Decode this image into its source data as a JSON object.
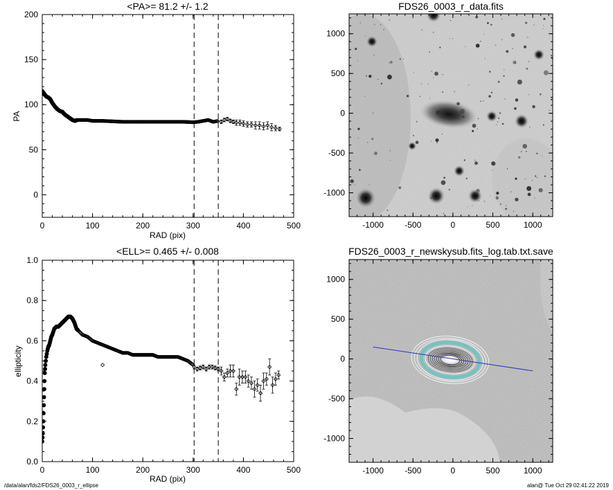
{
  "chart_data": [
    {
      "type": "scatter",
      "title": "<PA>=  81.2 +/-   1.2",
      "xlabel": "RAD (pix)",
      "ylabel": "PA",
      "xlim": [
        0,
        500
      ],
      "ylim": [
        -25,
        200
      ],
      "xticks": [
        0,
        100,
        200,
        300,
        400,
        500
      ],
      "yticks": [
        0,
        50,
        100,
        150,
        200
      ],
      "vlines": [
        302,
        350
      ],
      "curve": [
        [
          0,
          115
        ],
        [
          4,
          112
        ],
        [
          8,
          109
        ],
        [
          12,
          108
        ],
        [
          16,
          106
        ],
        [
          20,
          102
        ],
        [
          25,
          98
        ],
        [
          30,
          95
        ],
        [
          35,
          93
        ],
        [
          40,
          92
        ],
        [
          45,
          89
        ],
        [
          50,
          87
        ],
        [
          55,
          85
        ],
        [
          60,
          83
        ],
        [
          65,
          82
        ],
        [
          70,
          83
        ],
        [
          80,
          83
        ],
        [
          90,
          83
        ],
        [
          100,
          82
        ],
        [
          120,
          82
        ],
        [
          140,
          81.5
        ],
        [
          160,
          81
        ],
        [
          180,
          81
        ],
        [
          200,
          81
        ],
        [
          220,
          81
        ],
        [
          240,
          81
        ],
        [
          260,
          81
        ],
        [
          280,
          81
        ],
        [
          300,
          80.5
        ],
        [
          310,
          81
        ],
        [
          320,
          82
        ],
        [
          330,
          83
        ],
        [
          340,
          81
        ],
        [
          350,
          82
        ]
      ],
      "points": [
        [
          356,
          81
        ],
        [
          362,
          83
        ],
        [
          368,
          84
        ],
        [
          374,
          82
        ],
        [
          380,
          81
        ],
        [
          386,
          80
        ],
        [
          393,
          80
        ],
        [
          400,
          79
        ],
        [
          408,
          78
        ],
        [
          416,
          78
        ],
        [
          424,
          77
        ],
        [
          432,
          77
        ],
        [
          440,
          76
        ],
        [
          448,
          77
        ],
        [
          456,
          75
        ],
        [
          464,
          74
        ],
        [
          472,
          73
        ]
      ],
      "errors": [
        2,
        2,
        2,
        2,
        2,
        3,
        3,
        3,
        3,
        3,
        4,
        4,
        4,
        4,
        4,
        3,
        2
      ]
    },
    {
      "type": "scatter",
      "title": "<ELL>= 0.465 +/-  0.008",
      "xlabel": "RAD (pix)",
      "ylabel": "ellipticity",
      "xlim": [
        0,
        500
      ],
      "ylim": [
        0,
        1
      ],
      "xticks": [
        0,
        100,
        200,
        300,
        400,
        500
      ],
      "yticks": [
        "0.0",
        "0.2",
        "0.4",
        "0.6",
        "0.8",
        "1.0"
      ],
      "vlines": [
        302,
        350
      ],
      "curve": [
        [
          0,
          0.1
        ],
        [
          1,
          0.14
        ],
        [
          2,
          0.2
        ],
        [
          3,
          0.28
        ],
        [
          4,
          0.36
        ],
        [
          5,
          0.44
        ],
        [
          6,
          0.48
        ],
        [
          8,
          0.52
        ],
        [
          10,
          0.55
        ],
        [
          12,
          0.57
        ],
        [
          14,
          0.58
        ],
        [
          16,
          0.6
        ],
        [
          18,
          0.62
        ],
        [
          20,
          0.63
        ],
        [
          24,
          0.66
        ],
        [
          28,
          0.67
        ],
        [
          32,
          0.67
        ],
        [
          36,
          0.68
        ],
        [
          40,
          0.69
        ],
        [
          44,
          0.7
        ],
        [
          48,
          0.71
        ],
        [
          52,
          0.72
        ],
        [
          56,
          0.72
        ],
        [
          60,
          0.71
        ],
        [
          64,
          0.69
        ],
        [
          68,
          0.66
        ],
        [
          72,
          0.65
        ],
        [
          76,
          0.64
        ],
        [
          80,
          0.63
        ],
        [
          90,
          0.62
        ],
        [
          100,
          0.6
        ],
        [
          110,
          0.59
        ],
        [
          120,
          0.58
        ],
        [
          130,
          0.57
        ],
        [
          140,
          0.56
        ],
        [
          150,
          0.55
        ],
        [
          160,
          0.54
        ],
        [
          170,
          0.54
        ],
        [
          180,
          0.53
        ],
        [
          190,
          0.53
        ],
        [
          200,
          0.53
        ],
        [
          210,
          0.53
        ],
        [
          220,
          0.53
        ],
        [
          230,
          0.52
        ],
        [
          240,
          0.52
        ],
        [
          250,
          0.52
        ],
        [
          260,
          0.52
        ],
        [
          270,
          0.52
        ],
        [
          280,
          0.51
        ],
        [
          290,
          0.5
        ],
        [
          300,
          0.48
        ]
      ],
      "points": [
        [
          120,
          0.48
        ],
        [
          302,
          0.47
        ],
        [
          308,
          0.46
        ],
        [
          314,
          0.465
        ],
        [
          320,
          0.47
        ],
        [
          326,
          0.46
        ],
        [
          332,
          0.47
        ],
        [
          338,
          0.47
        ],
        [
          344,
          0.465
        ],
        [
          350,
          0.46
        ],
        [
          356,
          0.45
        ],
        [
          362,
          0.42
        ],
        [
          368,
          0.44
        ],
        [
          374,
          0.45
        ],
        [
          380,
          0.45
        ],
        [
          386,
          0.36
        ],
        [
          392,
          0.42
        ],
        [
          398,
          0.42
        ],
        [
          404,
          0.42
        ],
        [
          410,
          0.4
        ],
        [
          416,
          0.39
        ],
        [
          422,
          0.36
        ],
        [
          428,
          0.38
        ],
        [
          434,
          0.34
        ],
        [
          440,
          0.4
        ],
        [
          446,
          0.41
        ],
        [
          452,
          0.47
        ],
        [
          458,
          0.38
        ],
        [
          464,
          0.41
        ],
        [
          470,
          0.43
        ]
      ],
      "errors": [
        0,
        0.01,
        0.01,
        0.01,
        0.01,
        0.01,
        0.01,
        0.01,
        0.01,
        0.01,
        0.02,
        0.02,
        0.02,
        0.03,
        0.03,
        0.03,
        0.04,
        0.03,
        0.03,
        0.03,
        0.03,
        0.04,
        0.03,
        0.04,
        0.04,
        0.03,
        0.04,
        0.04,
        0.03,
        0.02
      ]
    },
    {
      "type": "heatmap",
      "title": "FDS26_0003_r_data.fits",
      "xlim": [
        -1300,
        1250
      ],
      "ylim": [
        -1300,
        1250
      ],
      "xticks": [
        -1000,
        -500,
        0,
        500,
        1000
      ],
      "yticks": [
        -1000,
        -500,
        0,
        500,
        1000
      ]
    },
    {
      "type": "heatmap",
      "title": "FDS26_0003_r_newskysub.fits_log.tab.txt.save",
      "xlim": [
        -1300,
        1250
      ],
      "ylim": [
        -1300,
        1250
      ],
      "xticks": [
        -1000,
        -500,
        0,
        500,
        1000
      ],
      "yticks": [
        -1000,
        -500,
        0,
        500,
        1000
      ],
      "line": [
        [
          -1000,
          150
        ],
        [
          1000,
          -150
        ]
      ],
      "line_color": "#2a36b8",
      "isophote_color": "#66c4c4"
    }
  ],
  "footer": {
    "left": "/data/alan/fds2/FDS26_0003_r_ellipse",
    "right": "alan@  Tue Oct 29 02:41:22 2019"
  }
}
